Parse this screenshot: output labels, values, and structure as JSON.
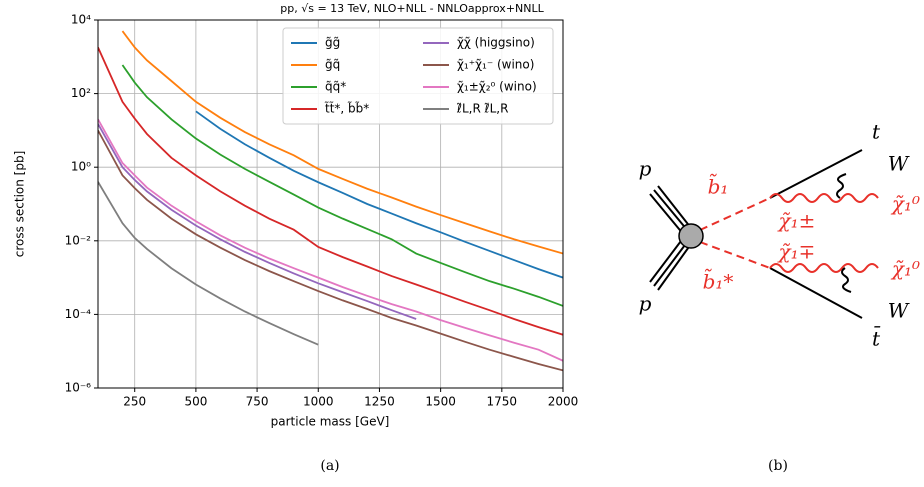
{
  "chart_data": {
    "type": "line",
    "title": "pp, √s = 13 TeV, NLO+NLL - NNLOapprox+NNLL",
    "x_label": "particle mass [GeV]",
    "y_label": "cross section [pb]",
    "log_y": true,
    "grid": true,
    "legend": "upper right",
    "legend_columns": 2,
    "xlim": [
      100,
      2000
    ],
    "xticks": [
      250,
      500,
      750,
      1000,
      1250,
      1500,
      1750,
      2000
    ],
    "ylim": [
      1e-06,
      10000
    ],
    "yticks": [
      {
        "value": 1e-06,
        "label": "10⁻⁶"
      },
      {
        "value": 0.0001,
        "label": "10⁻⁴"
      },
      {
        "value": 0.01,
        "label": "10⁻²"
      },
      {
        "value": 1,
        "label": "10⁰"
      },
      {
        "value": 100,
        "label": "10²"
      },
      {
        "value": 10000,
        "label": "10⁴"
      }
    ],
    "x": [
      100,
      200,
      250,
      300,
      400,
      500,
      600,
      700,
      800,
      900,
      1000,
      1100,
      1200,
      1300,
      1400,
      1500,
      1600,
      1700,
      1800,
      1900,
      2000
    ],
    "series": [
      {
        "name": "g̃g̃",
        "color": "#1f77b4",
        "values": [
          null,
          null,
          null,
          null,
          null,
          33,
          11,
          4.2,
          1.8,
          0.8,
          0.39,
          0.2,
          0.1,
          0.055,
          0.03,
          0.017,
          0.0094,
          0.0053,
          0.003,
          0.0017,
          0.001
        ]
      },
      {
        "name": "g̃q̃",
        "color": "#ff7f0e",
        "values": [
          null,
          5000,
          1800,
          800,
          220,
          60,
          22,
          9,
          4.2,
          2.1,
          0.9,
          0.48,
          0.26,
          0.15,
          0.085,
          0.05,
          0.03,
          0.018,
          0.011,
          0.007,
          0.0045
        ]
      },
      {
        "name": "q̃q̃*",
        "color": "#2ca02c",
        "values": [
          null,
          600,
          200,
          80,
          20,
          6,
          2.2,
          0.9,
          0.4,
          0.18,
          0.08,
          0.04,
          0.021,
          0.011,
          0.0045,
          0.0025,
          0.0014,
          0.0008,
          0.0005,
          0.0003,
          0.00017
        ]
      },
      {
        "name": "t̃t̃*, b̃b̃*",
        "color": "#d62728",
        "values": [
          1800,
          60,
          21,
          8,
          1.8,
          0.6,
          0.22,
          0.09,
          0.04,
          0.02,
          0.0068,
          0.0036,
          0.002,
          0.0011,
          0.00065,
          0.00038,
          0.00022,
          0.00013,
          7.5e-05,
          4.5e-05,
          2.8e-05
        ]
      },
      {
        "name": "χ̃χ̃ (higgsino)",
        "color": "#9467bd",
        "values": [
          15,
          1.0,
          0.45,
          0.22,
          0.07,
          0.026,
          0.011,
          0.005,
          0.0025,
          0.0013,
          0.0007,
          0.0004,
          0.00023,
          0.00013,
          7.5e-05,
          null,
          null,
          null,
          null,
          null,
          null
        ]
      },
      {
        "name": "χ̃₁⁺χ̃₁⁻ (wino)",
        "color": "#8c564b",
        "values": [
          10,
          0.6,
          0.27,
          0.13,
          0.04,
          0.015,
          0.0065,
          0.003,
          0.0015,
          0.0008,
          0.00043,
          0.00024,
          0.00014,
          8e-05,
          5e-05,
          3e-05,
          1.8e-05,
          1.1e-05,
          7e-06,
          4.5e-06,
          3e-06
        ]
      },
      {
        "name": "χ̃₁±χ̃₂⁰ (wino)",
        "color": "#e377c2",
        "values": [
          20,
          1.3,
          0.6,
          0.28,
          0.09,
          0.034,
          0.014,
          0.0065,
          0.0033,
          0.0018,
          0.001,
          0.00055,
          0.00032,
          0.00019,
          0.00012,
          7e-05,
          4.3e-05,
          2.7e-05,
          1.7e-05,
          1.1e-05,
          5.5e-06
        ]
      },
      {
        "name": "ℓ̃L,R ℓ̃L,R",
        "color": "#7f7f7f",
        "values": [
          0.4,
          0.03,
          0.012,
          0.006,
          0.0018,
          0.00065,
          0.00027,
          0.00012,
          5.8e-05,
          2.9e-05,
          1.5e-05,
          null,
          null,
          null,
          null,
          null,
          null,
          null,
          null,
          null,
          null
        ]
      }
    ]
  },
  "captions": [
    "(a)",
    "(b)"
  ],
  "diagram": {
    "labels": [
      "p",
      "p",
      "b̃₁",
      "b̃₁*",
      "χ̃₁±",
      "χ̃₁∓",
      "t",
      "t̄",
      "W",
      "W",
      "χ̃₁⁰",
      "χ̃₁⁰"
    ]
  }
}
